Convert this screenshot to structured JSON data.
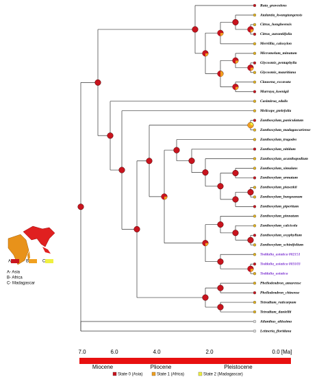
{
  "taxa": [
    "Ruta_graveolens",
    "Atalantia_kwangtungensis",
    "Citrus_hongheensis",
    "Citrus_aurantiifolia",
    "Merrillia_caloxylon",
    "Micromelum_minutum",
    "Glycosmis_pentaphylla",
    "Glycosmis_mauritiana",
    "Clausena_excavata",
    "Murraya_koenigii",
    "Casimiroa_edulis",
    "Melicope_ptelefolia",
    "Zanthoxylum_paniculatum",
    "Zanthoxylum_madagascariense",
    "Zanthoxylum_tragodes",
    "Zanthoxylum_nitidum",
    "Zanthoxylum_acanthopodium",
    "Zanthoxylum_simulans",
    "Zanthoxylum_armatum",
    "Zanthoxylum_piasezkii",
    "Zanthoxylum_bungeanum",
    "Zanthoxylum_piperitum",
    "Zanthoxylum_pinnatum",
    "Zanthoxylum_calcicola",
    "Zanthoxylum_oxyphyllum",
    "Zanthoxylum_schinifolium",
    "Toddalia_asiatica 002151",
    "Toddalia_asiatica 003103",
    "Toddalia_asiatica",
    "Phellodendron_amurense",
    "Phellodendron_chinense",
    "Tetradium_ruticarpum",
    "Tetradium_daniellii",
    "Ailanthus_altissima",
    "Leitneria_floridana"
  ],
  "time_axis": {
    "ticks": [
      "7.0",
      "6.0",
      "4.0",
      "2.0",
      "0.0 [Ma]"
    ],
    "epochs": [
      "Miocene",
      "Pliocene",
      "Pleistocene"
    ]
  },
  "legend": [
    "State 0 (Asia)",
    "State 1 (Africa)",
    "State 2 (Madagascar)"
  ],
  "map": {
    "keys": [
      "A",
      "B",
      "C"
    ],
    "regions": [
      "A- Asia",
      "B- Africa",
      "C- Madagascar"
    ]
  }
}
